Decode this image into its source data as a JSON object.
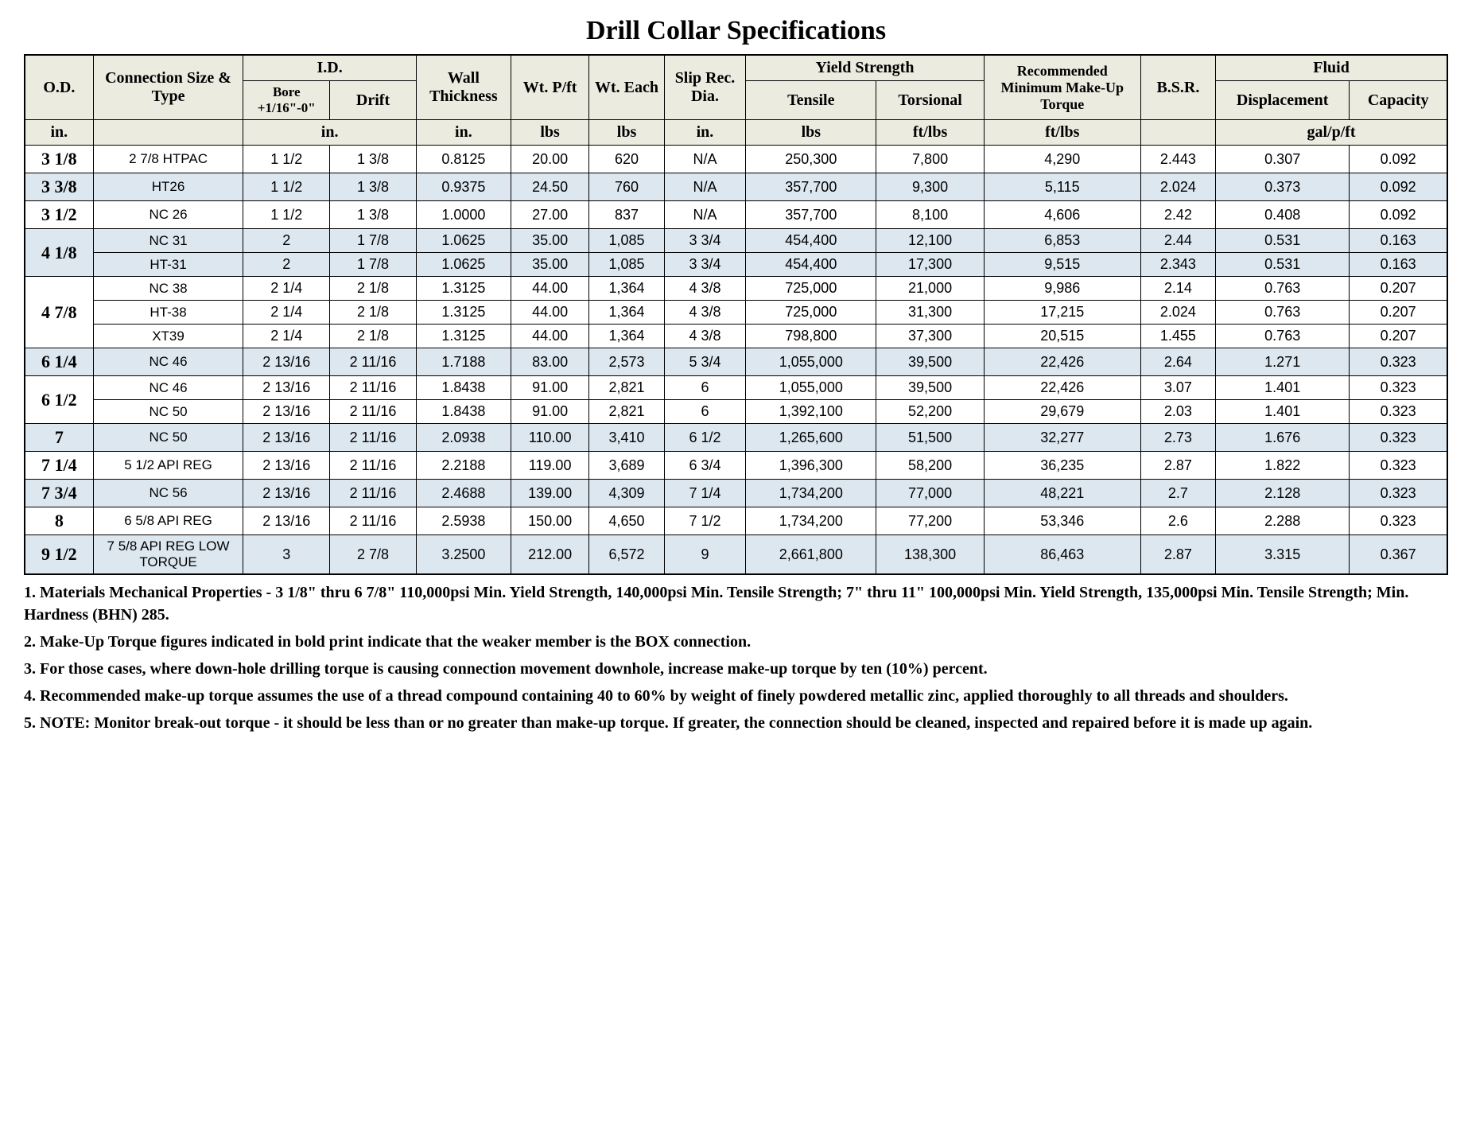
{
  "title": "Drill Collar Specifications",
  "headers": {
    "od": "O.D.",
    "conn": "Connection Size & Type",
    "id_group": "I.D.",
    "bore": "Bore +1/16\"-0\"",
    "drift": "Drift",
    "wall": "Wall Thickness",
    "wtpft": "Wt. P/ft",
    "wteach": "Wt. Each",
    "slip": "Slip Rec. Dia.",
    "yield_group": "Yield Strength",
    "tensile": "Tensile",
    "torsional": "Torsional",
    "makeup": "Recommended Minimum Make-Up Torque",
    "bsr": "B.S.R.",
    "fluid_group": "Fluid",
    "disp": "Displacement",
    "cap": "Capacity"
  },
  "units": {
    "od": "in.",
    "id": "in.",
    "wall": "in.",
    "wtpft": "lbs",
    "wteach": "lbs",
    "slip": "in.",
    "tensile": "lbs",
    "torsional": "ft/lbs",
    "makeup": "ft/lbs",
    "bsr": "",
    "fluid": "gal/p/ft"
  },
  "groups": [
    {
      "od": "3 1/8",
      "shaded": false,
      "rows": [
        {
          "conn": "2 7/8 HTPAC",
          "bore": "1  1/2",
          "drift": "1   3/8",
          "wall": "0.8125",
          "wtpft": "20.00",
          "wteach": "620",
          "slip": "N/A",
          "tensile": "250,300",
          "torsional": "7,800",
          "makeup": "4,290",
          "bsr": "2.443",
          "disp": "0.307",
          "cap": "0.092"
        }
      ]
    },
    {
      "od": "3 3/8",
      "shaded": true,
      "rows": [
        {
          "conn": "HT26",
          "bore": "1  1/2",
          "drift": "1   3/8",
          "wall": "0.9375",
          "wtpft": "24.50",
          "wteach": "760",
          "slip": "N/A",
          "tensile": "357,700",
          "torsional": "9,300",
          "makeup": "5,115",
          "bsr": "2.024",
          "disp": "0.373",
          "cap": "0.092"
        }
      ]
    },
    {
      "od": "3 1/2",
      "shaded": false,
      "rows": [
        {
          "conn": "NC 26",
          "bore": "1  1/2",
          "drift": "1   3/8",
          "wall": "1.0000",
          "wtpft": "27.00",
          "wteach": "837",
          "slip": "N/A",
          "tensile": "357,700",
          "torsional": "8,100",
          "makeup": "4,606",
          "bsr": "2.42",
          "disp": "0.408",
          "cap": "0.092"
        }
      ]
    },
    {
      "od": "4 1/8",
      "shaded": true,
      "rows": [
        {
          "conn": "NC 31",
          "bore": "2",
          "drift": "1   7/8",
          "wall": "1.0625",
          "wtpft": "35.00",
          "wteach": "1,085",
          "slip": "3 3/4",
          "tensile": "454,400",
          "torsional": "12,100",
          "makeup": "6,853",
          "bsr": "2.44",
          "disp": "0.531",
          "cap": "0.163"
        },
        {
          "conn": "HT-31",
          "bore": "2",
          "drift": "1   7/8",
          "wall": "1.0625",
          "wtpft": "35.00",
          "wteach": "1,085",
          "slip": "3 3/4",
          "tensile": "454,400",
          "torsional": "17,300",
          "makeup": "9,515",
          "bsr": "2.343",
          "disp": "0.531",
          "cap": "0.163"
        }
      ]
    },
    {
      "od": "4 7/8",
      "shaded": false,
      "rows": [
        {
          "conn": "NC 38",
          "bore": "2  1/4",
          "drift": "2   1/8",
          "wall": "1.3125",
          "wtpft": "44.00",
          "wteach": "1,364",
          "slip": "4 3/8",
          "tensile": "725,000",
          "torsional": "21,000",
          "makeup": "9,986",
          "bsr": "2.14",
          "disp": "0.763",
          "cap": "0.207"
        },
        {
          "conn": "HT-38",
          "bore": "2  1/4",
          "drift": "2   1/8",
          "wall": "1.3125",
          "wtpft": "44.00",
          "wteach": "1,364",
          "slip": "4 3/8",
          "tensile": "725,000",
          "torsional": "31,300",
          "makeup": "17,215",
          "bsr": "2.024",
          "disp": "0.763",
          "cap": "0.207"
        },
        {
          "conn": "XT39",
          "bore": "2  1/4",
          "drift": "2   1/8",
          "wall": "1.3125",
          "wtpft": "44.00",
          "wteach": "1,364",
          "slip": "4 3/8",
          "tensile": "798,800",
          "torsional": "37,300",
          "makeup": "20,515",
          "bsr": "1.455",
          "disp": "0.763",
          "cap": "0.207"
        }
      ]
    },
    {
      "od": "6 1/4",
      "shaded": true,
      "rows": [
        {
          "conn": "NC 46",
          "bore": "2 13/16",
          "drift": "2 11/16",
          "wall": "1.7188",
          "wtpft": "83.00",
          "wteach": "2,573",
          "slip": "5 3/4",
          "tensile": "1,055,000",
          "torsional": "39,500",
          "makeup": "22,426",
          "bsr": "2.64",
          "disp": "1.271",
          "cap": "0.323"
        }
      ]
    },
    {
      "od": "6 1/2",
      "shaded": false,
      "rows": [
        {
          "conn": "NC 46",
          "bore": "2 13/16",
          "drift": "2 11/16",
          "wall": "1.8438",
          "wtpft": "91.00",
          "wteach": "2,821",
          "slip": "6",
          "tensile": "1,055,000",
          "torsional": "39,500",
          "makeup": "22,426",
          "bsr": "3.07",
          "disp": "1.401",
          "cap": "0.323"
        },
        {
          "conn": "NC 50",
          "bore": "2 13/16",
          "drift": "2 11/16",
          "wall": "1.8438",
          "wtpft": "91.00",
          "wteach": "2,821",
          "slip": "6",
          "tensile": "1,392,100",
          "torsional": "52,200",
          "makeup": "29,679",
          "bsr": "2.03",
          "disp": "1.401",
          "cap": "0.323"
        }
      ]
    },
    {
      "od": "7",
      "shaded": true,
      "rows": [
        {
          "conn": "NC 50",
          "bore": "2 13/16",
          "drift": "2 11/16",
          "wall": "2.0938",
          "wtpft": "110.00",
          "wteach": "3,410",
          "slip": "6 1/2",
          "tensile": "1,265,600",
          "torsional": "51,500",
          "makeup": "32,277",
          "bsr": "2.73",
          "disp": "1.676",
          "cap": "0.323"
        }
      ]
    },
    {
      "od": "7 1/4",
      "shaded": false,
      "rows": [
        {
          "conn": "5 1/2 API REG",
          "bore": "2 13/16",
          "drift": "2 11/16",
          "wall": "2.2188",
          "wtpft": "119.00",
          "wteach": "3,689",
          "slip": "6 3/4",
          "tensile": "1,396,300",
          "torsional": "58,200",
          "makeup": "36,235",
          "bsr": "2.87",
          "disp": "1.822",
          "cap": "0.323"
        }
      ]
    },
    {
      "od": "7 3/4",
      "shaded": true,
      "rows": [
        {
          "conn": "NC 56",
          "bore": "2 13/16",
          "drift": "2 11/16",
          "wall": "2.4688",
          "wtpft": "139.00",
          "wteach": "4,309",
          "slip": "7 1/4",
          "tensile": "1,734,200",
          "torsional": "77,000",
          "makeup": "48,221",
          "bsr": "2.7",
          "disp": "2.128",
          "cap": "0.323"
        }
      ]
    },
    {
      "od": "8",
      "shaded": false,
      "rows": [
        {
          "conn": "6 5/8 API REG",
          "bore": "2 13/16",
          "drift": "2 11/16",
          "wall": "2.5938",
          "wtpft": "150.00",
          "wteach": "4,650",
          "slip": "7 1/2",
          "tensile": "1,734,200",
          "torsional": "77,200",
          "makeup": "53,346",
          "bsr": "2.6",
          "disp": "2.288",
          "cap": "0.323"
        }
      ]
    },
    {
      "od": "9 1/2",
      "shaded": true,
      "rows": [
        {
          "conn": "7 5/8 API REG LOW TORQUE",
          "bore": "3",
          "drift": "2   7/8",
          "wall": "3.2500",
          "wtpft": "212.00",
          "wteach": "6,572",
          "slip": "9",
          "tensile": "2,661,800",
          "torsional": "138,300",
          "makeup": "86,463",
          "bsr": "2.87",
          "disp": "3.315",
          "cap": "0.367"
        }
      ]
    }
  ],
  "notes": [
    "1.  Materials Mechanical Properties - 3 1/8\" thru 6 7/8\" 110,000psi Min. Yield Strength, 140,000psi Min. Tensile Strength; 7\" thru 11\" 100,000psi Min. Yield Strength, 135,000psi Min. Tensile Strength; Min. Hardness (BHN) 285.",
    "2.  Make-Up Torque figures indicated in bold print indicate that the weaker member is the BOX connection.",
    "3.  For those cases, where down-hole drilling torque  is causing connection movement downhole, increase make-up torque by ten (10%) percent.",
    "4.  Recommended make-up torque assumes the use of a thread compound containing 40 to 60% by weight of finely powdered metallic zinc, applied thoroughly to all threads and shoulders.",
    "5.  NOTE: Monitor break-out torque - it should be less than or no greater than make-up torque.  If greater, the connection should be cleaned, inspected and repaired before it is made up again."
  ]
}
